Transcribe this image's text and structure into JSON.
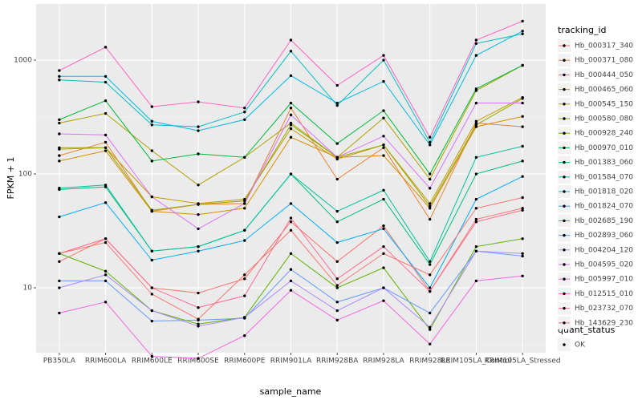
{
  "chart_data": {
    "type": "line",
    "log_y": true,
    "grid": true,
    "legend_position": "right",
    "x_label": "sample_name",
    "y_label": "FPKM + 1",
    "legend_title": "tracking_id",
    "legend2_title": "quant_status",
    "legend2_entries": [
      "OK"
    ],
    "point_color": "#000000",
    "categories": [
      "PB350LA",
      "RRIM600LA",
      "RRIM600LE",
      "RRIM600SE",
      "RRIM600PE",
      "RRIM901LA",
      "RRIM928BA",
      "RRIM928LA",
      "RRIM928LE",
      "RRIM105LA_Control",
      "RRIM105LA_Stressed"
    ],
    "ylim": [
      2.69,
      3112
    ],
    "yticks": [
      10,
      100,
      1000
    ],
    "series": [
      {
        "name": "Hb_000317_340",
        "color": "#F8766D",
        "values": [
          17,
          27,
          10,
          9,
          12,
          38,
          17,
          35,
          9.3,
          40,
          50
        ]
      },
      {
        "name": "Hb_000371_080",
        "color": "#EC8239",
        "values": [
          145,
          190,
          47,
          54,
          55,
          380,
          90,
          170,
          40,
          280,
          260
        ]
      },
      {
        "name": "Hb_000444_050",
        "color": "#DB8E00",
        "values": [
          130,
          160,
          47,
          44,
          50,
          210,
          140,
          145,
          50,
          260,
          320
        ]
      },
      {
        "name": "Hb_000465_060",
        "color": "#C79800",
        "values": [
          165,
          170,
          63,
          55,
          60,
          250,
          135,
          180,
          55,
          290,
          470
        ]
      },
      {
        "name": "Hb_000545_150",
        "color": "#AFA100",
        "values": [
          280,
          340,
          160,
          80,
          140,
          280,
          140,
          310,
          90,
          540,
          900
        ]
      },
      {
        "name": "Hb_000580_080",
        "color": "#93AA00",
        "values": [
          170,
          170,
          48,
          54,
          58,
          270,
          140,
          180,
          52,
          270,
          460
        ]
      },
      {
        "name": "Hb_000928_240",
        "color": "#5EB300",
        "values": [
          20,
          14,
          6.3,
          4.8,
          5.5,
          20,
          10,
          15,
          4.3,
          23,
          27
        ]
      },
      {
        "name": "Hb_000970_010",
        "color": "#00BA38",
        "values": [
          300,
          440,
          130,
          150,
          140,
          420,
          185,
          360,
          100,
          560,
          900
        ]
      },
      {
        "name": "Hb_001383_060",
        "color": "#00BF74",
        "values": [
          73,
          77,
          21,
          23,
          32,
          100,
          38,
          60,
          16,
          100,
          130
        ]
      },
      {
        "name": "Hb_001584_070",
        "color": "#00C19F",
        "values": [
          75,
          80,
          21,
          23,
          32,
          100,
          47,
          72,
          17,
          140,
          175
        ]
      },
      {
        "name": "Hb_001818_020",
        "color": "#00BFC4",
        "values": [
          670,
          640,
          270,
          260,
          350,
          1200,
          400,
          1000,
          190,
          1400,
          1700
        ]
      },
      {
        "name": "Hb_001824_070",
        "color": "#00B9E3",
        "values": [
          720,
          720,
          290,
          240,
          300,
          730,
          420,
          650,
          180,
          1100,
          1800
        ]
      },
      {
        "name": "Hb_002685_190",
        "color": "#00ADFA",
        "values": [
          42,
          56,
          17.5,
          21,
          26,
          55,
          25,
          33,
          10,
          60,
          95
        ]
      },
      {
        "name": "Hb_002893_060",
        "color": "#619CFF",
        "values": [
          11.5,
          11.5,
          5.1,
          5.2,
          5.4,
          14.5,
          7.5,
          10,
          6,
          21,
          19
        ]
      },
      {
        "name": "Hb_004204_120",
        "color": "#AE87FF",
        "values": [
          10,
          13,
          6.3,
          4.6,
          5.5,
          11.5,
          6.3,
          10,
          4.5,
          21,
          20
        ]
      },
      {
        "name": "Hb_004595_020",
        "color": "#DB72FB",
        "values": [
          225,
          220,
          63,
          33,
          55,
          330,
          140,
          215,
          75,
          420,
          420
        ]
      },
      {
        "name": "Hb_005997_010",
        "color": "#F564E3",
        "values": [
          6,
          7.5,
          2.5,
          2.4,
          3.8,
          9.5,
          5.2,
          7.7,
          3.2,
          11.5,
          12.7
        ]
      },
      {
        "name": "Hb_012515_010",
        "color": "#FF61C3",
        "values": [
          810,
          1300,
          390,
          430,
          380,
          1500,
          600,
          1100,
          210,
          1500,
          2200
        ]
      },
      {
        "name": "Hb_023732_070",
        "color": "#FF6C91",
        "values": [
          20,
          27,
          10,
          6.7,
          8.5,
          41,
          12,
          23,
          9.3,
          38,
          48
        ]
      },
      {
        "name": "Hb_143629_230",
        "color": "#F8766D",
        "values": [
          20,
          25,
          8.8,
          5.3,
          13,
          32,
          10.5,
          20,
          13,
          50,
          62
        ]
      }
    ]
  }
}
